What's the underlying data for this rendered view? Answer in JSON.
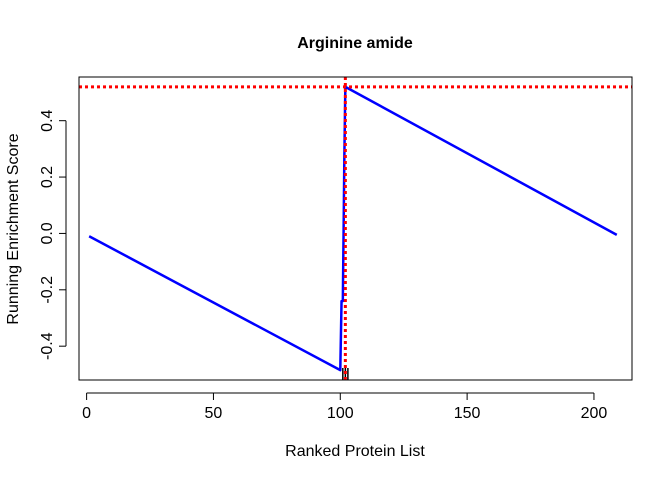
{
  "chart_data": {
    "type": "line",
    "title": "Arginine amide",
    "xlabel": "Ranked Protein List",
    "ylabel": "Running Enrichment Score",
    "xlim": [
      -3,
      215
    ],
    "ylim": [
      -0.52,
      0.555
    ],
    "xticks": [
      0,
      50,
      100,
      150,
      200
    ],
    "yticks": [
      -0.4,
      -0.2,
      0.0,
      0.2,
      0.4
    ],
    "xtick_labels": [
      "0",
      "50",
      "100",
      "150",
      "200"
    ],
    "ytick_labels": [
      "-0.4",
      "-0.2",
      "0.0",
      "0.2",
      "0.4"
    ],
    "grid": false,
    "series": [
      {
        "color": "#0000ff",
        "points": [
          [
            1,
            -0.01
          ],
          [
            100,
            -0.485
          ],
          [
            100.5,
            -0.24
          ],
          [
            101,
            -0.24
          ],
          [
            101.3,
            0.0
          ],
          [
            101.6,
            0.27
          ],
          [
            102,
            0.52
          ],
          [
            209,
            -0.005
          ]
        ]
      }
    ],
    "reference_lines": [
      {
        "orientation": "horizontal",
        "value": 0.52,
        "color": "#ff0000",
        "style": "dotted"
      },
      {
        "orientation": "vertical",
        "value": 102,
        "color": "#ff0000",
        "style": "dotted"
      }
    ],
    "rug": {
      "x": [
        101,
        102,
        103
      ],
      "color": "#000000"
    }
  }
}
